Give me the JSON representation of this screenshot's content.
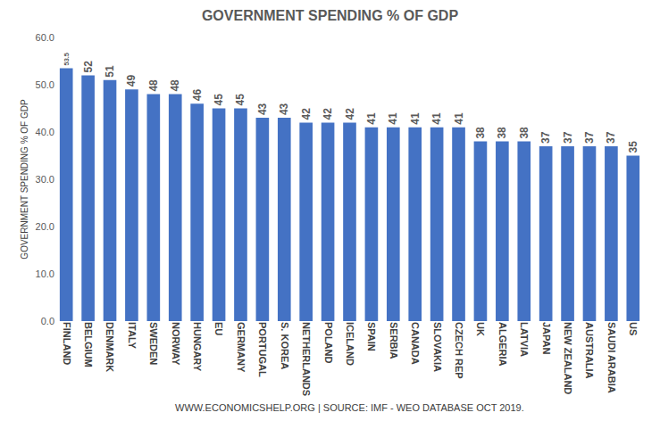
{
  "chart_data": {
    "type": "bar",
    "title": "GOVERNMENT SPENDING % OF GDP",
    "y_label": "GOVERNMENT SPENDING % OF GDP",
    "annotation": "WWW.ECONOMICSHELP.ORG | SOURCE: IMF - WEO DATABASE OCT 2019.",
    "categories": [
      "FINLAND",
      "BELGIUM",
      "DENMARK",
      "ITALY",
      "SWEDEN",
      "NORWAY",
      "HUNGARY",
      "EU",
      "GERMANY",
      "PORTUGAL",
      "S. KOREA",
      "NETHERLANDS",
      "POLAND",
      "ICELAND",
      "SPAIN",
      "SERBIA",
      "CANADA",
      "SLOVAKIA",
      "CZECH REP",
      "UK",
      "ALGERIA",
      "LATVIA",
      "JAPAN",
      "NEW ZEALAND",
      "AUSTRALIA",
      "SAUDI ARABIA",
      "US"
    ],
    "values": [
      53.5,
      52,
      51,
      49,
      48,
      48,
      46,
      45,
      45,
      43,
      43,
      42,
      42,
      42,
      41,
      41,
      41,
      41,
      41,
      38,
      38,
      38,
      37,
      37,
      37,
      37,
      35
    ],
    "color": "#4472c4",
    "ylim": [
      0,
      60
    ],
    "yticks": [
      {
        "value": 0,
        "label": "0.0"
      },
      {
        "value": 10,
        "label": "10.0"
      },
      {
        "value": 20,
        "label": "20.0"
      },
      {
        "value": 30,
        "label": "30.0"
      },
      {
        "value": 40,
        "label": "40.0"
      },
      {
        "value": 50,
        "label": "50.0"
      },
      {
        "value": 60,
        "label": "60.0"
      }
    ],
    "grid": false,
    "data_labels": true
  }
}
